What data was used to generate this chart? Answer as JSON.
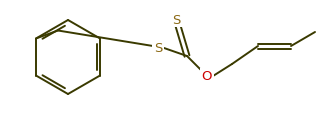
{
  "bg_color": "#ffffff",
  "line_color": "#3a3a00",
  "o_color": "#cc0000",
  "s_color": "#8b6914",
  "line_width": 1.4,
  "font_size": 9.5,
  "figsize": [
    3.26,
    1.15
  ],
  "dpi": 100,
  "xlim": [
    0,
    326
  ],
  "ylim": [
    0,
    115
  ]
}
